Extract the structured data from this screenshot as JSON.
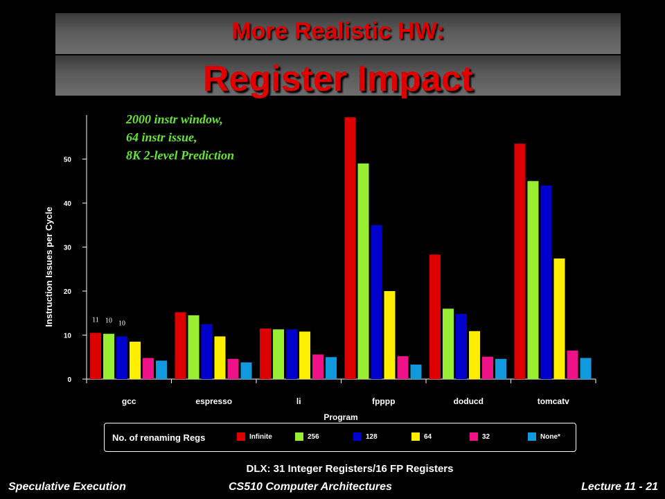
{
  "slide": {
    "title_line1": "More Realistic HW:",
    "title_line2": "Register Impact",
    "annotation": [
      "2000 instr window,",
      "64 instr issue,",
      "8K 2-level Prediction"
    ],
    "subtitle": "DLX: 31 Integer Registers/16 FP Registers",
    "footer_left": "Speculative Execution",
    "footer_center": "CS510 Computer Architectures",
    "footer_right": "Lecture 11 - 21"
  },
  "legend": {
    "title": "No. of renaming Regs"
  },
  "chart_data": {
    "type": "bar",
    "ylabel": "Instruction Issues per Cycle",
    "xlabel": "Program",
    "ylim": [
      0,
      60
    ],
    "yticks": [
      0,
      10,
      20,
      30,
      40,
      50
    ],
    "categories": [
      "gcc",
      "espresso",
      "li",
      "fpppp",
      "doducd",
      "tomcatv"
    ],
    "series": [
      {
        "name": "Infinite",
        "color": "#dd0000",
        "values": [
          10.5,
          15.2,
          11.5,
          59.5,
          28.3,
          53.5
        ]
      },
      {
        "name": "256",
        "color": "#99ee33",
        "values": [
          10.3,
          14.5,
          11.3,
          49.0,
          16.0,
          45.0
        ]
      },
      {
        "name": "128",
        "color": "#0000cc",
        "values": [
          9.7,
          12.5,
          11.3,
          35.0,
          14.8,
          44.0
        ]
      },
      {
        "name": "64",
        "color": "#ffee00",
        "values": [
          8.5,
          9.7,
          10.8,
          20.0,
          10.9,
          27.4
        ]
      },
      {
        "name": "32",
        "color": "#ee1188",
        "values": [
          4.8,
          4.6,
          5.6,
          5.2,
          5.1,
          6.5
        ]
      },
      {
        "name": "None*",
        "color": "#1199dd",
        "values": [
          4.2,
          3.8,
          5.0,
          3.3,
          4.6,
          4.8
        ]
      }
    ],
    "data_labels": [
      {
        "category": "gcc",
        "series": "Infinite",
        "text": "11"
      },
      {
        "category": "gcc",
        "series": "256",
        "text": "10"
      },
      {
        "category": "gcc",
        "series": "128",
        "text": "10"
      }
    ],
    "legend_position": "bottom"
  }
}
